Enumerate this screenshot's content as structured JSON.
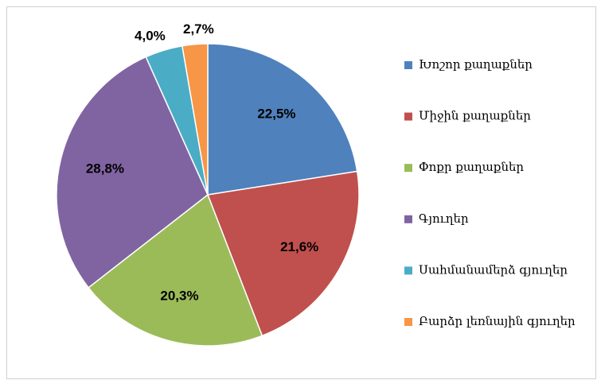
{
  "chart_data": {
    "type": "pie",
    "categories": [
      "Խոշոր քաղաքներ",
      "Միջին քաղաքներ",
      "Փոքր քաղաքներ",
      "Գյուղեր",
      "Սահմանամերձ գյուղեր",
      "Բարձր լեռնային գյուղեր"
    ],
    "values": [
      22.5,
      21.6,
      20.3,
      28.8,
      4.0,
      2.7
    ],
    "value_labels": [
      "22,5%",
      "21,6%",
      "20,3%",
      "28,8%",
      "4,0%",
      "2,7%"
    ],
    "colors": [
      "#4f81bd",
      "#c0504d",
      "#9bbb59",
      "#8064a2",
      "#4bacc6",
      "#f79646"
    ],
    "legend": "right"
  }
}
